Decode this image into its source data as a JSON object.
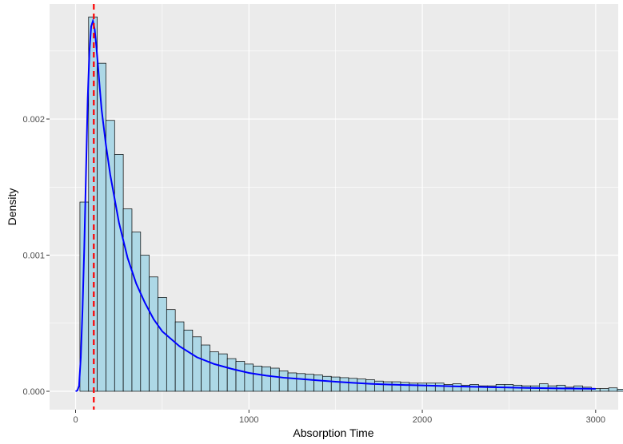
{
  "chart_data": {
    "type": "bar",
    "title": "",
    "xlabel": "Absorption Time",
    "ylabel": "Density",
    "xlim": [
      -150,
      3130
    ],
    "ylim": [
      -0.000135,
      0.002845
    ],
    "x_ticks": [
      0,
      1000,
      2000,
      3000
    ],
    "x_tick_labels": [
      "0",
      "1000",
      "2000",
      "3000"
    ],
    "y_ticks": [
      0,
      0.001,
      0.002
    ],
    "y_tick_labels": [
      "0.000",
      "0.001",
      "0.002"
    ],
    "grid": true,
    "legend": "none",
    "bin_width": 50,
    "bin_start": 25,
    "histogram_density": [
      0.00139,
      0.00275,
      0.00241,
      0.00199,
      0.00174,
      0.00134,
      0.00117,
      0.001,
      0.00084,
      0.00069,
      0.0006,
      0.00051,
      0.00045,
      0.0004,
      0.00034,
      0.00029,
      0.000275,
      0.00024,
      0.00022,
      0.0002,
      0.000185,
      0.00018,
      0.00017,
      0.00015,
      0.000135,
      0.00013,
      0.000125,
      0.00012,
      0.00011,
      0.000105,
      0.0001,
      9.5e-05,
      9e-05,
      8.5e-05,
      7.5e-05,
      7e-05,
      7e-05,
      6.5e-05,
      6e-05,
      6e-05,
      6e-05,
      6e-05,
      5e-05,
      5.5e-05,
      4.5e-05,
      5e-05,
      4e-05,
      4e-05,
      5e-05,
      5e-05,
      4.5e-05,
      4e-05,
      4e-05,
      5.5e-05,
      4e-05,
      4.5e-05,
      3e-05,
      4e-05,
      3e-05,
      2e-05,
      2e-05,
      2.5e-05,
      1.5e-05,
      2e-05
    ],
    "density_curve": {
      "x": [
        0,
        10,
        20,
        30,
        40,
        50,
        60,
        70,
        80,
        90,
        100,
        110,
        120,
        130,
        140,
        150,
        175,
        200,
        250,
        300,
        350,
        400,
        450,
        500,
        600,
        700,
        800,
        900,
        1000,
        1100,
        1200,
        1300,
        1400,
        1500,
        1600,
        1700,
        1800,
        1900,
        2000,
        2200,
        2400,
        2600,
        2800,
        3000
      ],
      "y": [
        0,
        5e-06,
        4e-05,
        0.00025,
        0.0006,
        0.00105,
        0.0016,
        0.00215,
        0.0025,
        0.00268,
        0.00272,
        0.00266,
        0.00253,
        0.00238,
        0.00222,
        0.00207,
        0.00181,
        0.00159,
        0.00124,
        0.00098,
        0.00079,
        0.00065,
        0.00053,
        0.00044,
        0.00033,
        0.00025,
        0.0002,
        0.000165,
        0.000135,
        0.000115,
        0.0001,
        9e-05,
        8e-05,
        7e-05,
        6.2e-05,
        5.5e-05,
        5e-05,
        4.6e-05,
        4.3e-05,
        3.6e-05,
        3e-05,
        2.5e-05,
        2.1e-05,
        1.8e-05
      ],
      "color": "#0000ff"
    },
    "reference_line": {
      "x": 105,
      "color": "#ff0000",
      "style": "dashed"
    },
    "colors": {
      "panel_background": "#ebebeb",
      "grid": "#ffffff",
      "bar_fill": "#add8e6",
      "bar_stroke": "#000000"
    }
  }
}
